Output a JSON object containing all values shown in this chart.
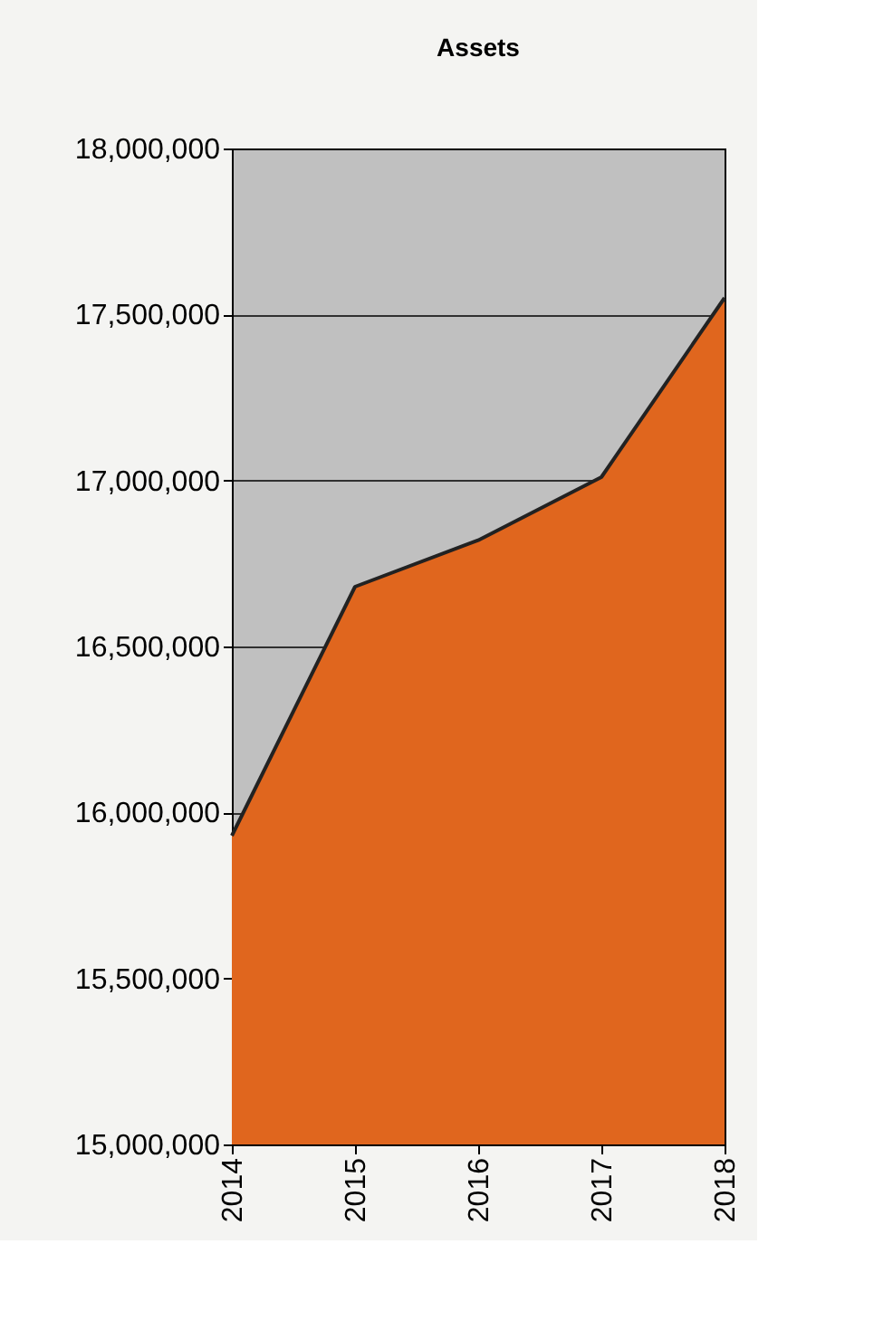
{
  "chart_data": {
    "type": "area",
    "title": "Assets",
    "categories": [
      "2014",
      "2015",
      "2016",
      "2017",
      "2018"
    ],
    "series": [
      {
        "color": "#e0661e",
        "values": [
          15930000,
          16680000,
          16820000,
          17010000,
          17550000
        ]
      }
    ],
    "ylim": [
      15000000,
      18000000
    ],
    "yticks": [
      {
        "value": 15000000,
        "label": "15,000,000"
      },
      {
        "value": 15500000,
        "label": "15,500,000"
      },
      {
        "value": 16000000,
        "label": "16,000,000"
      },
      {
        "value": 16500000,
        "label": "16,500,000"
      },
      {
        "value": 17000000,
        "label": "17,000,000"
      },
      {
        "value": 17500000,
        "label": "17,500,000"
      },
      {
        "value": 18000000,
        "label": "18,000,000"
      }
    ],
    "grid": "y"
  }
}
